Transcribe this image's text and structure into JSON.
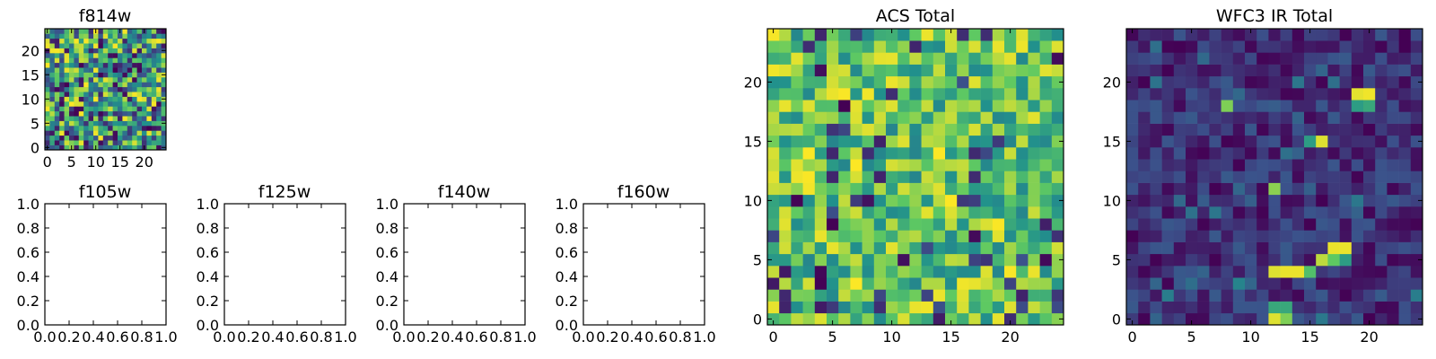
{
  "colormap": "viridis",
  "colormap_stops": [
    "#440154",
    "#3b528b",
    "#21918c",
    "#5ec962",
    "#fde725"
  ],
  "chart_data": [
    {
      "id": "f814w",
      "type": "heatmap",
      "title": "f814w",
      "xlim": [
        -0.5,
        24.5
      ],
      "ylim": [
        -0.5,
        24.5
      ],
      "xticks": [
        0,
        5,
        10,
        15,
        20
      ],
      "yticks": [
        0,
        5,
        10,
        15,
        20
      ],
      "xtick_labels": [
        "0",
        "5",
        "10",
        "15",
        "20"
      ],
      "ytick_labels": [
        "0",
        "5",
        "10",
        "15",
        "20"
      ],
      "grid_size": [
        25,
        25
      ],
      "value_range": [
        0,
        1
      ],
      "data_note": "25x25 noise image, values estimated as pseudo-random (seed 11)",
      "seed": 11,
      "hotspots": []
    },
    {
      "id": "f105w",
      "type": "heatmap",
      "title": "f105w",
      "xlim": [
        0,
        1
      ],
      "ylim": [
        0,
        1
      ],
      "xticks": [
        0,
        0.2,
        0.4,
        0.6,
        0.8,
        1.0
      ],
      "yticks": [
        0,
        0.2,
        0.4,
        0.6,
        0.8,
        1.0
      ],
      "xtick_labels": [
        "0.0",
        "0.2",
        "0.4",
        "0.6",
        "0.8",
        "1.0"
      ],
      "ytick_labels": [
        "0.0",
        "0.2",
        "0.4",
        "0.6",
        "0.8",
        "1.0"
      ],
      "empty": true
    },
    {
      "id": "f125w",
      "type": "heatmap",
      "title": "f125w",
      "xlim": [
        0,
        1
      ],
      "ylim": [
        0,
        1
      ],
      "xticks": [
        0,
        0.2,
        0.4,
        0.6,
        0.8,
        1.0
      ],
      "yticks": [
        0,
        0.2,
        0.4,
        0.6,
        0.8,
        1.0
      ],
      "xtick_labels": [
        "0.0",
        "0.2",
        "0.4",
        "0.6",
        "0.8",
        "1.0"
      ],
      "ytick_labels": [
        "0.0",
        "0.2",
        "0.4",
        "0.6",
        "0.8",
        "1.0"
      ],
      "empty": true
    },
    {
      "id": "f140w",
      "type": "heatmap",
      "title": "f140w",
      "xlim": [
        0,
        1
      ],
      "ylim": [
        0,
        1
      ],
      "xticks": [
        0,
        0.2,
        0.4,
        0.6,
        0.8,
        1.0
      ],
      "yticks": [
        0,
        0.2,
        0.4,
        0.6,
        0.8,
        1.0
      ],
      "xtick_labels": [
        "0.0",
        "0.2",
        "0.4",
        "0.6",
        "0.8",
        "1.0"
      ],
      "ytick_labels": [
        "0.0",
        "0.2",
        "0.4",
        "0.6",
        "0.8",
        "1.0"
      ],
      "empty": true
    },
    {
      "id": "f160w",
      "type": "heatmap",
      "title": "f160w",
      "xlim": [
        0,
        1
      ],
      "ylim": [
        0,
        1
      ],
      "xticks": [
        0,
        0.2,
        0.4,
        0.6,
        0.8,
        1.0
      ],
      "yticks": [
        0,
        0.2,
        0.4,
        0.6,
        0.8,
        1.0
      ],
      "xtick_labels": [
        "0.0",
        "0.2",
        "0.4",
        "0.6",
        "0.8",
        "1.0"
      ],
      "ytick_labels": [
        "0.0",
        "0.2",
        "0.4",
        "0.6",
        "0.8",
        "1.0"
      ],
      "empty": true
    },
    {
      "id": "acs_total",
      "type": "heatmap",
      "title": "ACS Total",
      "xlim": [
        -0.5,
        24.5
      ],
      "ylim": [
        -0.5,
        24.5
      ],
      "xticks": [
        0,
        5,
        10,
        15,
        20
      ],
      "yticks": [
        0,
        5,
        10,
        15,
        20
      ],
      "xtick_labels": [
        "0",
        "5",
        "10",
        "15",
        "20"
      ],
      "ytick_labels": [
        "0",
        "5",
        "10",
        "15",
        "20"
      ],
      "grid_size": [
        25,
        25
      ],
      "value_range": [
        0,
        1
      ],
      "data_note": "25x25 noise image dominated by green/yellow values, estimated as pseudo-random (seed 23)",
      "seed": 23,
      "bias": 0.72,
      "hotspots": []
    },
    {
      "id": "wfc3_ir_total",
      "type": "heatmap",
      "title": "WFC3 IR Total",
      "xlim": [
        -0.5,
        24.5
      ],
      "ylim": [
        -0.5,
        24.5
      ],
      "xticks": [
        0,
        5,
        10,
        15,
        20
      ],
      "yticks": [
        0,
        5,
        10,
        15,
        20
      ],
      "xtick_labels": [
        "0",
        "5",
        "10",
        "15",
        "20"
      ],
      "ytick_labels": [
        "0",
        "5",
        "10",
        "15",
        "20"
      ],
      "grid_size": [
        25,
        25
      ],
      "value_range": [
        0,
        1
      ],
      "data_note": "25x25 mostly low (dark blue/purple) background with a few bright pixels",
      "seed": 37,
      "bias": 0.22,
      "hotspots": [
        {
          "x": 20,
          "y": 19,
          "v": 0.98
        },
        {
          "x": 19,
          "y": 19,
          "v": 0.96
        },
        {
          "x": 20,
          "y": 18,
          "v": 0.6
        },
        {
          "x": 19,
          "y": 18,
          "v": 0.55
        },
        {
          "x": 8,
          "y": 18,
          "v": 0.8
        },
        {
          "x": 16,
          "y": 15,
          "v": 0.95
        },
        {
          "x": 15,
          "y": 15,
          "v": 0.55
        },
        {
          "x": 12,
          "y": 11,
          "v": 0.82
        },
        {
          "x": 17,
          "y": 6,
          "v": 0.97
        },
        {
          "x": 18,
          "y": 6,
          "v": 0.97
        },
        {
          "x": 16,
          "y": 5,
          "v": 0.9
        },
        {
          "x": 18,
          "y": 5,
          "v": 0.55
        },
        {
          "x": 17,
          "y": 5,
          "v": 0.75
        },
        {
          "x": 13,
          "y": 4,
          "v": 0.97
        },
        {
          "x": 14,
          "y": 4,
          "v": 0.97
        },
        {
          "x": 15,
          "y": 4,
          "v": 0.7
        },
        {
          "x": 12,
          "y": 4,
          "v": 0.95
        },
        {
          "x": 12,
          "y": 1,
          "v": 0.6
        },
        {
          "x": 13,
          "y": 1,
          "v": 0.6
        },
        {
          "x": 12,
          "y": 0,
          "v": 0.95
        },
        {
          "x": 13,
          "y": 0,
          "v": 0.8
        },
        {
          "x": 9,
          "y": 3,
          "v": 0.45
        },
        {
          "x": 3,
          "y": 2,
          "v": 0.42
        }
      ]
    }
  ]
}
